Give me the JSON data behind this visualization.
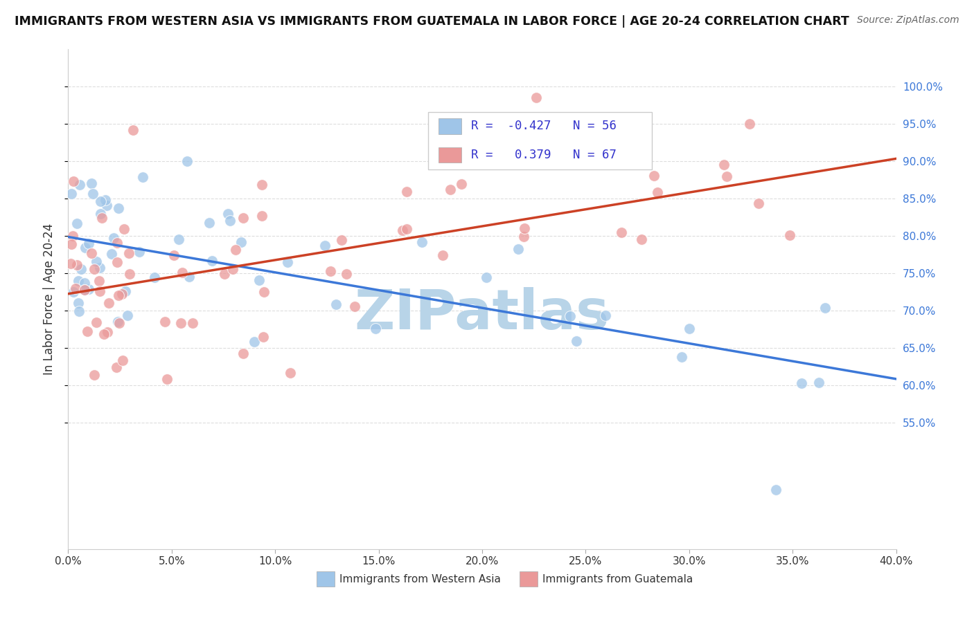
{
  "title": "IMMIGRANTS FROM WESTERN ASIA VS IMMIGRANTS FROM GUATEMALA IN LABOR FORCE | AGE 20-24 CORRELATION CHART",
  "source": "Source: ZipAtlas.com",
  "ylabel": "In Labor Force | Age 20-24",
  "legend_label_blue": "Immigrants from Western Asia",
  "legend_label_pink": "Immigrants from Guatemala",
  "R_blue": -0.427,
  "N_blue": 56,
  "R_pink": 0.379,
  "N_pink": 67,
  "color_blue": "#9fc5e8",
  "color_pink": "#ea9999",
  "color_blue_line": "#3c78d8",
  "color_pink_line": "#cc4125",
  "xlim": [
    0.0,
    0.4
  ],
  "ylim": [
    0.38,
    1.05
  ],
  "xticks": [
    0.0,
    0.05,
    0.1,
    0.15,
    0.2,
    0.25,
    0.3,
    0.35,
    0.4
  ],
  "yticks_right": [
    0.55,
    0.6,
    0.65,
    0.7,
    0.75,
    0.8,
    0.85,
    0.9,
    0.95,
    1.0
  ],
  "watermark": "ZIPatlas",
  "watermark_color": "#b8d4e8",
  "background_color": "#ffffff",
  "grid_color": "#dddddd"
}
